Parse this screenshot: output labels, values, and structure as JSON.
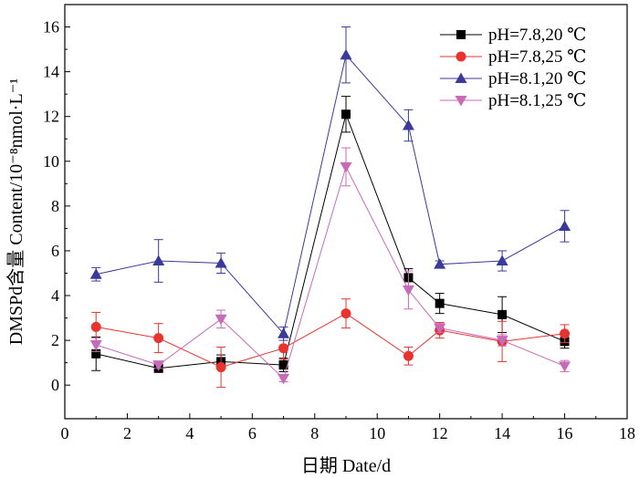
{
  "chart_data": {
    "type": "line",
    "xlabel": "日期 Date/d",
    "ylabel": "DMSPd含量 Content/10⁻⁸nmol·L⁻¹",
    "xlim": [
      0,
      18
    ],
    "ylim": [
      -1.5,
      17
    ],
    "x_ticks": [
      0,
      2,
      4,
      6,
      8,
      10,
      12,
      14,
      16,
      18
    ],
    "y_ticks": [
      0,
      2,
      4,
      6,
      8,
      10,
      12,
      14,
      16
    ],
    "legend_position": "top-right",
    "series": [
      {
        "name": "pH=7.8,20 ℃",
        "color": "#000000",
        "marker": "square",
        "x": [
          1,
          3,
          5,
          7,
          9,
          11,
          12,
          14,
          16
        ],
        "values": [
          1.4,
          0.75,
          1.05,
          0.9,
          12.1,
          4.8,
          3.65,
          3.15,
          1.95
        ],
        "error": [
          0.75,
          0.1,
          0.3,
          0.3,
          0.8,
          0.4,
          0.45,
          0.8,
          0.3
        ]
      },
      {
        "name": "pH=7.8,25 ℃",
        "color": "#e8332f",
        "marker": "circle",
        "x": [
          1,
          3,
          5,
          7,
          9,
          11,
          12,
          14,
          16
        ],
        "values": [
          2.6,
          2.1,
          0.8,
          1.65,
          3.2,
          1.3,
          2.45,
          1.95,
          2.3
        ],
        "error": [
          0.65,
          0.65,
          0.9,
          0.5,
          0.65,
          0.4,
          0.35,
          0.9,
          0.4
        ]
      },
      {
        "name": "pH=8.1,20 ℃",
        "color": "#3a3a9a",
        "marker": "triangle-up",
        "x": [
          1,
          3,
          5,
          7,
          9,
          11,
          12,
          14,
          16
        ],
        "values": [
          4.95,
          5.55,
          5.45,
          2.3,
          14.75,
          11.6,
          5.4,
          5.55,
          7.1
        ],
        "error": [
          0.3,
          0.95,
          0.45,
          0.3,
          1.25,
          0.7,
          0.15,
          0.45,
          0.7
        ]
      },
      {
        "name": "pH=8.1,25 ℃",
        "color": "#c86ab8",
        "marker": "triangle-down",
        "x": [
          1,
          3,
          5,
          7,
          9,
          11,
          12,
          14,
          16
        ],
        "values": [
          1.8,
          0.9,
          2.95,
          0.3,
          9.75,
          4.25,
          2.55,
          2.0,
          0.85
        ],
        "error": [
          0.3,
          0.15,
          0.4,
          0.15,
          0.85,
          0.85,
          0.2,
          0.25,
          0.25
        ]
      }
    ]
  }
}
